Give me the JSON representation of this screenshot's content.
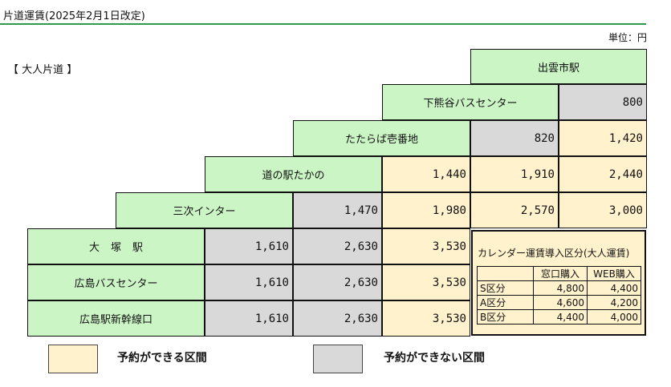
{
  "header": {
    "title": "片道運賃(2025年2月1日改定)",
    "unit": "単位：円"
  },
  "ticket_type": "【 大人片道 】",
  "stations": {
    "izumoshi": "出雲市駅",
    "shimokumadani": "下熊谷バスセンター",
    "tatarabaichibanchi": "たたらば壱番地",
    "michinoeki_takano": "道の駅たかの",
    "miyoshi_ic": "三次インター",
    "ootsuka": "大塚駅",
    "hiroshima_bc": "広島バスセンター",
    "hiroshima_shinkansen": "広島駅新幹線口"
  },
  "fares": {
    "shimokumadani": {
      "izumoshi": "800"
    },
    "tatarabaichibanchi": {
      "shimokumadani": "820",
      "izumoshi": "1,420"
    },
    "michinoeki_takano": {
      "tatarabaichibanchi": "1,440",
      "shimokumadani": "1,910",
      "izumoshi": "2,440"
    },
    "miyoshi_ic": {
      "michinoeki_takano": "1,470",
      "tatarabaichibanchi": "1,980",
      "shimokumadani": "2,570",
      "izumoshi": "3,000"
    },
    "ootsuka": {
      "miyoshi_ic": "1,610",
      "michinoeki_takano": "2,630",
      "tatarabaichibanchi": "3,530"
    },
    "hiroshima_bc": {
      "miyoshi_ic": "1,610",
      "michinoeki_takano": "2,630",
      "tatarabaichibanchi": "3,530"
    },
    "hiroshima_shinkansen": {
      "miyoshi_ic": "1,610",
      "michinoeki_takano": "2,630",
      "tatarabaichibanchi": "3,530"
    }
  },
  "calendar_fares": {
    "title": "カレンダー運賃導入区分(大人運賃)",
    "columns": [
      "窓口購入",
      "WEB購入"
    ],
    "rows": [
      {
        "zone": "S区分",
        "counter": "4,800",
        "web": "4,400"
      },
      {
        "zone": "A区分",
        "counter": "4,600",
        "web": "4,200"
      },
      {
        "zone": "B区分",
        "counter": "4,400",
        "web": "4,000"
      }
    ]
  },
  "legend": {
    "reservable": "予約ができる区間",
    "non_reservable": "予約ができない区間"
  },
  "colors": {
    "station_cell": "#ccf5c6",
    "reservable": "#fff2cc",
    "non_reservable": "#d9d9d9",
    "title_rule": "#2e9a4a"
  }
}
